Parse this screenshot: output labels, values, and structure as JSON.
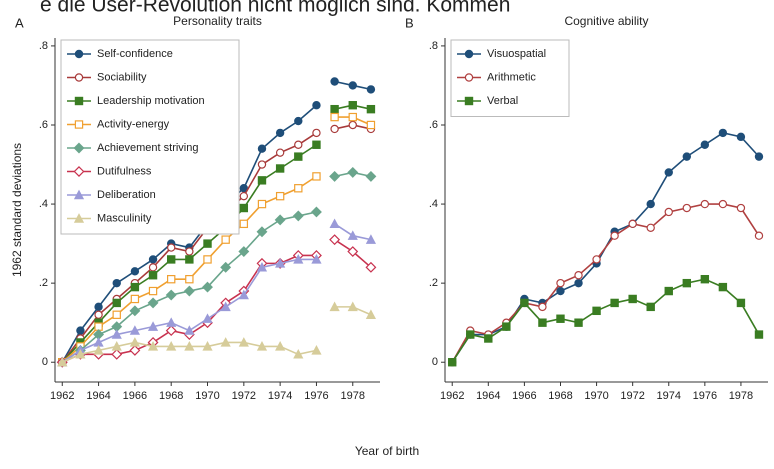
{
  "header_text": "e die User-Revolution nicht möglich sind. Kommen",
  "axis_labels": {
    "x": "Year of birth",
    "y": "1962 standard deviations"
  },
  "chart_data": [
    {
      "type": "line",
      "panel_label": "A",
      "title": "Personality traits",
      "legend": "upper left",
      "gap_after": 1976,
      "x": [
        1962,
        1963,
        1964,
        1965,
        1966,
        1967,
        1968,
        1969,
        1970,
        1971,
        1972,
        1973,
        1974,
        1975,
        1976,
        1977,
        1978,
        1979
      ],
      "xlim": [
        1961.6,
        1979.5
      ],
      "xticks": [
        1962,
        1964,
        1966,
        1968,
        1970,
        1972,
        1974,
        1976,
        1978
      ],
      "ylim": [
        -0.05,
        0.82
      ],
      "yticks": [
        0,
        {
          "value": 0.2,
          "label": ".2"
        },
        {
          "value": 0.4,
          "label": ".4"
        },
        {
          "value": 0.6,
          "label": ".6"
        },
        {
          "value": 0.8,
          "label": ".8"
        }
      ],
      "series": [
        {
          "name": "Self-confidence",
          "color": "#1f4e79",
          "marker": "circle",
          "open": false,
          "values": [
            0,
            0.08,
            0.14,
            0.2,
            0.23,
            0.26,
            0.3,
            0.29,
            0.35,
            0.4,
            0.44,
            0.54,
            0.58,
            0.61,
            0.65,
            0.71,
            0.7,
            0.69
          ]
        },
        {
          "name": "Sociability",
          "color": "#a83a3a",
          "marker": "circle",
          "open": true,
          "values": [
            0,
            0.06,
            0.12,
            0.16,
            0.2,
            0.24,
            0.29,
            0.28,
            0.34,
            0.38,
            0.42,
            0.5,
            0.53,
            0.55,
            0.58,
            0.59,
            0.6,
            0.59
          ]
        },
        {
          "name": "Leadership motivation",
          "color": "#3a7d22",
          "marker": "square",
          "open": false,
          "values": [
            0,
            0.05,
            0.1,
            0.15,
            0.19,
            0.22,
            0.26,
            0.26,
            0.3,
            0.34,
            0.39,
            0.46,
            0.49,
            0.52,
            0.55,
            0.64,
            0.65,
            0.64
          ]
        },
        {
          "name": "Activity-energy",
          "color": "#f0a030",
          "marker": "square",
          "open": true,
          "values": [
            0,
            0.04,
            0.09,
            0.12,
            0.16,
            0.18,
            0.21,
            0.21,
            0.26,
            0.31,
            0.35,
            0.4,
            0.42,
            0.44,
            0.47,
            0.62,
            0.62,
            0.6
          ]
        },
        {
          "name": "Achievement striving",
          "color": "#6aa58c",
          "marker": "diamond",
          "open": false,
          "values": [
            0,
            0.03,
            0.07,
            0.09,
            0.13,
            0.15,
            0.17,
            0.18,
            0.19,
            0.24,
            0.28,
            0.33,
            0.36,
            0.37,
            0.38,
            0.47,
            0.48,
            0.47
          ]
        },
        {
          "name": "Dutifulness",
          "color": "#c8324f",
          "marker": "diamond",
          "open": true,
          "values": [
            0,
            0.02,
            0.02,
            0.02,
            0.03,
            0.05,
            0.08,
            0.07,
            0.1,
            0.15,
            0.18,
            0.25,
            0.25,
            0.27,
            0.27,
            0.31,
            0.28,
            0.24
          ]
        },
        {
          "name": "Deliberation",
          "color": "#9a9ad8",
          "marker": "triangle",
          "open": false,
          "values": [
            0,
            0.03,
            0.05,
            0.07,
            0.08,
            0.09,
            0.1,
            0.08,
            0.11,
            0.14,
            0.17,
            0.24,
            0.25,
            0.26,
            0.26,
            0.35,
            0.32,
            0.31
          ]
        },
        {
          "name": "Masculinity",
          "color": "#d6cc9a",
          "marker": "triangle",
          "open": false,
          "values": [
            0,
            0.02,
            0.03,
            0.04,
            0.05,
            0.04,
            0.04,
            0.04,
            0.04,
            0.05,
            0.05,
            0.04,
            0.04,
            0.02,
            0.03,
            0.14,
            0.14,
            0.12
          ]
        }
      ]
    },
    {
      "type": "line",
      "panel_label": "B",
      "title": "Cognitive ability",
      "legend": "upper left",
      "x": [
        1962,
        1963,
        1964,
        1965,
        1966,
        1967,
        1968,
        1969,
        1970,
        1971,
        1972,
        1973,
        1974,
        1975,
        1976,
        1977,
        1978,
        1979
      ],
      "xlim": [
        1961.6,
        1979.5
      ],
      "xticks": [
        1962,
        1964,
        1966,
        1968,
        1970,
        1972,
        1974,
        1976,
        1978
      ],
      "ylim": [
        -0.05,
        0.82
      ],
      "yticks": [
        0,
        {
          "value": 0.2,
          "label": ".2"
        },
        {
          "value": 0.4,
          "label": ".4"
        },
        {
          "value": 0.6,
          "label": ".6"
        },
        {
          "value": 0.8,
          "label": ".8"
        }
      ],
      "series": [
        {
          "name": "Visuospatial",
          "color": "#1f4e79",
          "marker": "circle",
          "open": false,
          "values": [
            0,
            0.07,
            0.07,
            0.09,
            0.16,
            0.15,
            0.18,
            0.2,
            0.25,
            0.33,
            0.35,
            0.4,
            0.48,
            0.52,
            0.55,
            0.58,
            0.57,
            0.52
          ]
        },
        {
          "name": "Arithmetic",
          "color": "#b04040",
          "marker": "circle",
          "open": true,
          "values": [
            0,
            0.08,
            0.07,
            0.1,
            0.15,
            0.14,
            0.2,
            0.22,
            0.26,
            0.32,
            0.35,
            0.34,
            0.38,
            0.39,
            0.4,
            0.4,
            0.39,
            0.32
          ]
        },
        {
          "name": "Verbal",
          "color": "#3a7d22",
          "marker": "square",
          "open": false,
          "values": [
            0,
            0.07,
            0.06,
            0.09,
            0.15,
            0.1,
            0.11,
            0.1,
            0.13,
            0.15,
            0.16,
            0.14,
            0.18,
            0.2,
            0.21,
            0.19,
            0.15,
            0.07
          ]
        }
      ]
    }
  ]
}
